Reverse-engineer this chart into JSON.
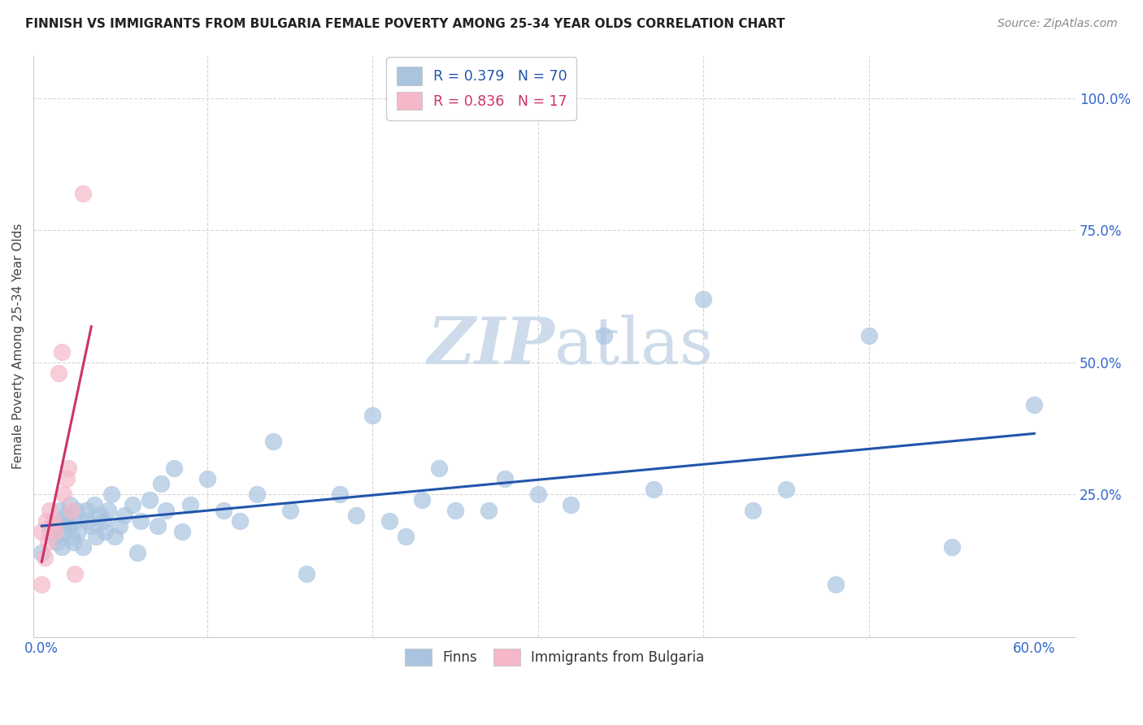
{
  "title": "FINNISH VS IMMIGRANTS FROM BULGARIA FEMALE POVERTY AMONG 25-34 YEAR OLDS CORRELATION CHART",
  "source": "Source: ZipAtlas.com",
  "ylabel": "Female Poverty Among 25-34 Year Olds",
  "finns_R": 0.379,
  "finns_N": 70,
  "bulgaria_R": 0.836,
  "bulgaria_N": 17,
  "background_color": "#ffffff",
  "grid_color": "#cccccc",
  "blue_scatter_color": "#aac4e0",
  "pink_scatter_color": "#f5b8c8",
  "blue_line_color": "#2255aa",
  "pink_line_color": "#cc3366",
  "dash_color": "#cccccc",
  "watermark_color": "#c8d8e8",
  "finns_x": [
    0.0,
    0.005,
    0.007,
    0.008,
    0.009,
    0.01,
    0.011,
    0.012,
    0.013,
    0.014,
    0.015,
    0.016,
    0.017,
    0.018,
    0.019,
    0.02,
    0.021,
    0.022,
    0.025,
    0.027,
    0.028,
    0.03,
    0.032,
    0.033,
    0.035,
    0.037,
    0.038,
    0.04,
    0.042,
    0.044,
    0.047,
    0.05,
    0.055,
    0.058,
    0.06,
    0.065,
    0.07,
    0.072,
    0.075,
    0.08,
    0.085,
    0.09,
    0.1,
    0.11,
    0.12,
    0.13,
    0.14,
    0.15,
    0.16,
    0.18,
    0.19,
    0.2,
    0.21,
    0.22,
    0.23,
    0.24,
    0.25,
    0.27,
    0.28,
    0.3,
    0.32,
    0.34,
    0.37,
    0.4,
    0.43,
    0.45,
    0.48,
    0.5,
    0.55,
    0.6
  ],
  "finns_y": [
    0.14,
    0.18,
    0.17,
    0.2,
    0.16,
    0.19,
    0.22,
    0.15,
    0.18,
    0.2,
    0.21,
    0.19,
    0.23,
    0.17,
    0.16,
    0.2,
    0.22,
    0.18,
    0.15,
    0.22,
    0.2,
    0.19,
    0.23,
    0.17,
    0.21,
    0.2,
    0.18,
    0.22,
    0.25,
    0.17,
    0.19,
    0.21,
    0.23,
    0.14,
    0.2,
    0.24,
    0.19,
    0.27,
    0.22,
    0.3,
    0.18,
    0.23,
    0.28,
    0.22,
    0.2,
    0.25,
    0.35,
    0.22,
    0.1,
    0.25,
    0.21,
    0.4,
    0.2,
    0.17,
    0.24,
    0.3,
    0.22,
    0.22,
    0.28,
    0.25,
    0.23,
    0.55,
    0.26,
    0.62,
    0.22,
    0.26,
    0.08,
    0.55,
    0.15,
    0.42
  ],
  "bulgaria_x": [
    0.0,
    0.0,
    0.002,
    0.003,
    0.004,
    0.005,
    0.006,
    0.007,
    0.008,
    0.01,
    0.012,
    0.013,
    0.015,
    0.016,
    0.018,
    0.02,
    0.025
  ],
  "bulgaria_y": [
    0.08,
    0.18,
    0.13,
    0.2,
    0.16,
    0.22,
    0.19,
    0.2,
    0.18,
    0.48,
    0.52,
    0.25,
    0.28,
    0.3,
    0.22,
    0.1,
    0.82
  ],
  "xlim": [
    -0.005,
    0.625
  ],
  "ylim": [
    -0.02,
    1.08
  ],
  "xtick_pos": [
    0.0,
    0.1,
    0.2,
    0.3,
    0.4,
    0.5,
    0.6
  ],
  "xtick_labels": [
    "0.0%",
    "",
    "",
    "",
    "",
    "",
    "60.0%"
  ],
  "ytick_pos": [
    0.0,
    0.25,
    0.5,
    0.75,
    1.0
  ],
  "ytick_labels": [
    "",
    "25.0%",
    "50.0%",
    "75.0%",
    "100.0%"
  ],
  "grid_hlines": [
    0.25,
    0.5,
    0.75,
    1.0
  ],
  "grid_vlines": [
    0.1,
    0.2,
    0.3,
    0.4,
    0.5
  ],
  "legend_label_1": "R = 0.379   N = 70",
  "legend_label_2": "R = 0.836   N = 17",
  "bottom_label_1": "Finns",
  "bottom_label_2": "Immigrants from Bulgaria"
}
